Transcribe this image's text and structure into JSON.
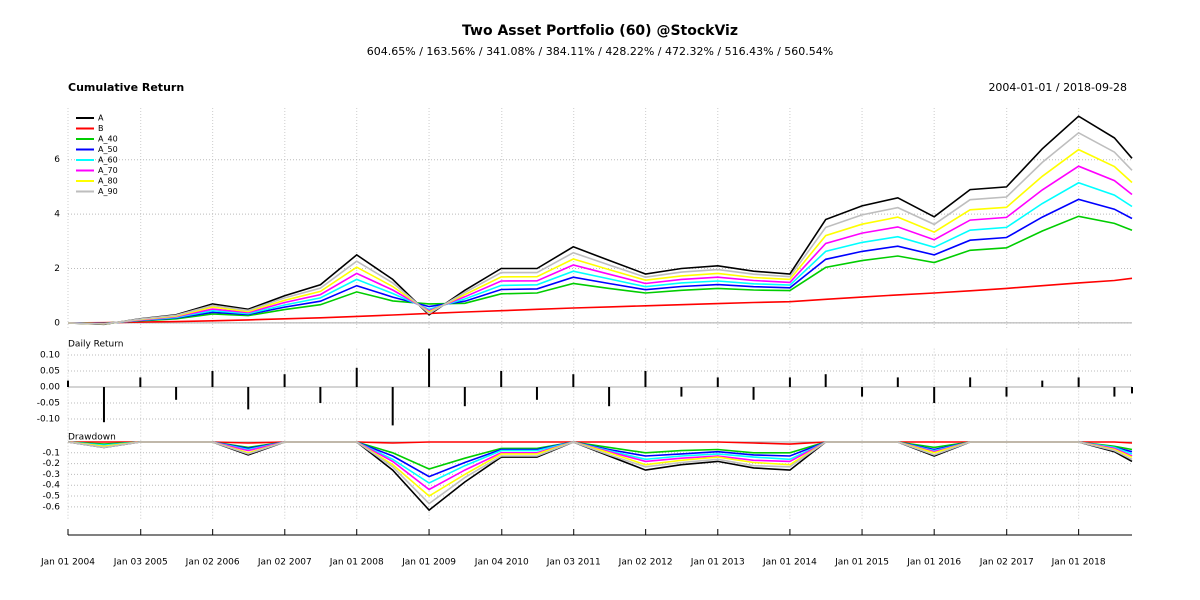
{
  "chart_data": [
    {
      "type": "line",
      "title": "Two Asset Portfolio (60) @StockViz",
      "subtitle": "604.65% / 163.56% / 341.08% / 384.11% / 428.22% / 472.32% / 516.43% / 560.54%",
      "panel_title": "Cumulative Return",
      "date_range": "2004-01-01 / 2018-09-28",
      "legend": "topleft",
      "grid": true,
      "xlim": [
        "2004-01-01",
        "2018-09-28"
      ],
      "ylim": [
        -0.26,
        7.9
      ],
      "yticks": [
        0,
        2,
        4,
        6
      ],
      "x": [
        "2004-01-01",
        "2004-07-01",
        "2005-01-01",
        "2005-07-01",
        "2006-01-01",
        "2006-07-01",
        "2007-01-01",
        "2007-07-01",
        "2008-01-01",
        "2008-07-01",
        "2009-01-01",
        "2009-07-01",
        "2010-01-01",
        "2010-07-01",
        "2011-01-01",
        "2011-07-01",
        "2012-01-01",
        "2012-07-01",
        "2013-01-01",
        "2013-07-01",
        "2014-01-01",
        "2014-07-01",
        "2015-01-01",
        "2015-07-01",
        "2016-01-01",
        "2016-07-01",
        "2017-01-01",
        "2017-07-01",
        "2018-01-01",
        "2018-07-01",
        "2018-09-28"
      ],
      "series": [
        {
          "name": "A",
          "color": "#000000",
          "values": [
            0,
            -0.05,
            0.15,
            0.3,
            0.7,
            0.5,
            1.0,
            1.4,
            2.5,
            1.6,
            0.3,
            1.2,
            2.0,
            2.0,
            2.8,
            2.3,
            1.8,
            2.0,
            2.1,
            1.9,
            1.8,
            3.8,
            4.3,
            4.6,
            3.9,
            4.9,
            5.0,
            6.4,
            7.6,
            6.8,
            6.05
          ]
        },
        {
          "name": "B",
          "color": "#ff0000",
          "values": [
            0,
            0.01,
            0.03,
            0.05,
            0.08,
            0.11,
            0.15,
            0.19,
            0.24,
            0.29,
            0.35,
            0.4,
            0.45,
            0.5,
            0.55,
            0.59,
            0.63,
            0.67,
            0.71,
            0.75,
            0.78,
            0.87,
            0.95,
            1.03,
            1.1,
            1.18,
            1.27,
            1.37,
            1.47,
            1.56,
            1.64
          ]
        },
        {
          "name": "A_40",
          "color": "#00cd00",
          "values": [
            0,
            -0.01,
            0.08,
            0.15,
            0.33,
            0.27,
            0.49,
            0.67,
            1.14,
            0.81,
            0.7,
            0.72,
            1.07,
            1.1,
            1.45,
            1.27,
            1.1,
            1.2,
            1.27,
            1.21,
            1.19,
            2.04,
            2.29,
            2.46,
            2.22,
            2.67,
            2.76,
            3.38,
            3.92,
            3.66,
            3.41
          ]
        },
        {
          "name": "A_50",
          "color": "#0000ff",
          "values": [
            0,
            -0.02,
            0.09,
            0.18,
            0.39,
            0.31,
            0.58,
            0.8,
            1.37,
            0.95,
            0.6,
            0.8,
            1.23,
            1.25,
            1.68,
            1.45,
            1.22,
            1.34,
            1.41,
            1.33,
            1.29,
            2.34,
            2.63,
            2.82,
            2.5,
            3.04,
            3.14,
            3.89,
            4.54,
            4.18,
            3.84
          ]
        },
        {
          "name": "A_60",
          "color": "#00ffff",
          "values": [
            0,
            -0.03,
            0.1,
            0.2,
            0.45,
            0.34,
            0.66,
            0.92,
            1.6,
            1.08,
            0.5,
            0.88,
            1.38,
            1.4,
            1.9,
            1.62,
            1.33,
            1.47,
            1.54,
            1.44,
            1.39,
            2.63,
            2.96,
            3.17,
            2.78,
            3.41,
            3.51,
            4.39,
            5.15,
            4.7,
            4.28
          ]
        },
        {
          "name": "A_70",
          "color": "#ff00ff",
          "values": [
            0,
            -0.03,
            0.11,
            0.23,
            0.51,
            0.38,
            0.75,
            1.04,
            1.82,
            1.21,
            0.45,
            0.96,
            1.54,
            1.55,
            2.13,
            1.79,
            1.45,
            1.6,
            1.68,
            1.56,
            1.49,
            2.92,
            3.3,
            3.53,
            3.06,
            3.78,
            3.88,
            4.89,
            5.76,
            5.23,
            4.72
          ]
        },
        {
          "name": "A_80",
          "color": "#ffff00",
          "values": [
            0,
            -0.04,
            0.13,
            0.25,
            0.58,
            0.42,
            0.83,
            1.16,
            2.05,
            1.34,
            0.4,
            1.04,
            1.69,
            1.7,
            2.35,
            1.96,
            1.57,
            1.73,
            1.82,
            1.67,
            1.6,
            3.21,
            3.63,
            3.89,
            3.34,
            4.16,
            4.25,
            5.39,
            6.37,
            5.75,
            5.16
          ]
        },
        {
          "name": "A_90",
          "color": "#bebebe",
          "values": [
            0,
            -0.04,
            0.14,
            0.28,
            0.64,
            0.46,
            0.92,
            1.28,
            2.27,
            1.47,
            0.35,
            1.12,
            1.85,
            1.85,
            2.58,
            2.13,
            1.68,
            1.87,
            1.96,
            1.79,
            1.7,
            3.51,
            3.97,
            4.24,
            3.62,
            4.53,
            4.63,
            5.9,
            6.99,
            6.28,
            5.61
          ]
        }
      ]
    },
    {
      "type": "bar",
      "panel_title": "Daily Return",
      "grid": true,
      "color": "#000000",
      "xlim": [
        "2004-01-01",
        "2018-09-28"
      ],
      "ylim": [
        -0.16,
        0.12
      ],
      "yticks": [
        {
          "value": -0.1,
          "label": "-0.10"
        },
        {
          "value": -0.05,
          "label": "-0.05"
        },
        {
          "value": 0,
          "label": "0.00"
        },
        {
          "value": 0.05,
          "label": "0.05"
        },
        {
          "value": 0.1,
          "label": "0.10"
        }
      ],
      "x": [
        "2004-01-01",
        "2004-07-01",
        "2005-01-01",
        "2005-07-01",
        "2006-01-01",
        "2006-07-01",
        "2007-01-01",
        "2007-07-01",
        "2008-01-01",
        "2008-07-01",
        "2009-01-01",
        "2009-07-01",
        "2010-01-01",
        "2010-07-01",
        "2011-01-01",
        "2011-07-01",
        "2012-01-01",
        "2012-07-01",
        "2013-01-01",
        "2013-07-01",
        "2014-01-01",
        "2014-07-01",
        "2015-01-01",
        "2015-07-01",
        "2016-01-01",
        "2016-07-01",
        "2017-01-01",
        "2017-07-01",
        "2018-01-01",
        "2018-07-01",
        "2018-09-28"
      ],
      "values": [
        0.02,
        -0.11,
        0.03,
        -0.04,
        0.05,
        -0.07,
        0.04,
        -0.05,
        0.06,
        -0.12,
        0.12,
        -0.06,
        0.05,
        -0.04,
        0.04,
        -0.06,
        0.05,
        -0.03,
        0.03,
        -0.04,
        0.03,
        0.04,
        -0.03,
        0.03,
        -0.05,
        0.03,
        -0.03,
        0.02,
        0.03,
        -0.03,
        -0.02
      ]
    },
    {
      "type": "line",
      "panel_title": "Drawdown",
      "grid": true,
      "xlim": [
        "2004-01-01",
        "2018-09-28"
      ],
      "ylim": [
        -0.72,
        0.02
      ],
      "yticks": [
        -0.6,
        -0.5,
        -0.4,
        -0.3,
        -0.2,
        -0.1
      ],
      "xticks": [
        {
          "value": "2004-01-01",
          "label": "Jan 01 2004"
        },
        {
          "value": "2005-01-03",
          "label": "Jan 03 2005"
        },
        {
          "value": "2006-01-02",
          "label": "Jan 02 2006"
        },
        {
          "value": "2007-01-02",
          "label": "Jan 02 2007"
        },
        {
          "value": "2008-01-01",
          "label": "Jan 01 2008"
        },
        {
          "value": "2009-01-01",
          "label": "Jan 01 2009"
        },
        {
          "value": "2010-01-04",
          "label": "Jan 04 2010"
        },
        {
          "value": "2011-01-03",
          "label": "Jan 03 2011"
        },
        {
          "value": "2012-01-02",
          "label": "Jan 02 2012"
        },
        {
          "value": "2013-01-01",
          "label": "Jan 01 2013"
        },
        {
          "value": "2014-01-01",
          "label": "Jan 01 2014"
        },
        {
          "value": "2015-01-01",
          "label": "Jan 01 2015"
        },
        {
          "value": "2016-01-01",
          "label": "Jan 01 2016"
        },
        {
          "value": "2017-01-02",
          "label": "Jan 02 2017"
        },
        {
          "value": "2018-01-01",
          "label": "Jan 01 2018"
        }
      ],
      "x": [
        "2004-01-01",
        "2004-07-01",
        "2005-01-01",
        "2005-07-01",
        "2006-01-01",
        "2006-07-01",
        "2007-01-01",
        "2007-07-01",
        "2008-01-01",
        "2008-07-01",
        "2009-01-01",
        "2009-07-01",
        "2010-01-01",
        "2010-07-01",
        "2011-01-01",
        "2011-07-01",
        "2012-01-01",
        "2012-07-01",
        "2013-01-01",
        "2013-07-01",
        "2014-01-01",
        "2014-07-01",
        "2015-01-01",
        "2015-07-01",
        "2016-01-01",
        "2016-07-01",
        "2017-01-01",
        "2017-07-01",
        "2018-01-01",
        "2018-07-01",
        "2018-09-28"
      ],
      "series": [
        {
          "name": "A",
          "color": "#000000",
          "values": [
            0,
            -0.05,
            0,
            0,
            0,
            -0.12,
            0,
            0,
            0,
            -0.26,
            -0.63,
            -0.37,
            -0.14,
            -0.14,
            0,
            -0.13,
            -0.26,
            -0.21,
            -0.18,
            -0.24,
            -0.26,
            0,
            0,
            0,
            -0.13,
            0,
            0,
            0,
            0,
            -0.09,
            -0.18
          ]
        },
        {
          "name": "B",
          "color": "#ff0000",
          "values": [
            0,
            0,
            0,
            0,
            0,
            -0.01,
            0,
            0,
            0,
            -0.01,
            0,
            0,
            0,
            0,
            0,
            0,
            0,
            0,
            0,
            -0.01,
            -0.02,
            0,
            0,
            0,
            0,
            0,
            0,
            0,
            0,
            0,
            -0.01
          ]
        },
        {
          "name": "A_40",
          "color": "#00cd00",
          "values": [
            0,
            -0.02,
            0,
            0,
            0,
            -0.05,
            0,
            0,
            0,
            -0.1,
            -0.25,
            -0.15,
            -0.06,
            -0.06,
            0,
            -0.05,
            -0.1,
            -0.08,
            -0.07,
            -0.1,
            -0.1,
            0,
            0,
            0,
            -0.05,
            0,
            0,
            0,
            0,
            -0.04,
            -0.07
          ]
        },
        {
          "name": "A_50",
          "color": "#0000ff",
          "values": [
            0,
            -0.03,
            0,
            0,
            0,
            -0.06,
            0,
            0,
            0,
            -0.13,
            -0.32,
            -0.19,
            -0.07,
            -0.07,
            0,
            -0.07,
            -0.13,
            -0.11,
            -0.09,
            -0.12,
            -0.13,
            0,
            0,
            0,
            -0.07,
            0,
            0,
            0,
            0,
            -0.05,
            -0.09
          ]
        },
        {
          "name": "A_60",
          "color": "#00ffff",
          "values": [
            0,
            -0.03,
            0,
            0,
            0,
            -0.07,
            0,
            0,
            0,
            -0.16,
            -0.38,
            -0.22,
            -0.08,
            -0.08,
            0,
            -0.08,
            -0.16,
            -0.13,
            -0.11,
            -0.14,
            -0.16,
            0,
            0,
            0,
            -0.08,
            0,
            0,
            0,
            0,
            -0.05,
            -0.11
          ]
        },
        {
          "name": "A_70",
          "color": "#ff00ff",
          "values": [
            0,
            -0.04,
            0,
            0,
            0,
            -0.08,
            0,
            0,
            0,
            -0.18,
            -0.44,
            -0.26,
            -0.1,
            -0.1,
            0,
            -0.09,
            -0.18,
            -0.15,
            -0.13,
            -0.17,
            -0.18,
            0,
            0,
            0,
            -0.09,
            0,
            0,
            0,
            0,
            -0.06,
            -0.13
          ]
        },
        {
          "name": "A_80",
          "color": "#ffff00",
          "values": [
            0,
            -0.04,
            0,
            0,
            0,
            -0.1,
            0,
            0,
            0,
            -0.21,
            -0.5,
            -0.3,
            -0.11,
            -0.11,
            0,
            -0.1,
            -0.21,
            -0.17,
            -0.14,
            -0.19,
            -0.21,
            0,
            0,
            0,
            -0.1,
            0,
            0,
            0,
            0,
            -0.07,
            -0.14
          ]
        },
        {
          "name": "A_90",
          "color": "#bebebe",
          "values": [
            0,
            -0.05,
            0,
            0,
            0,
            -0.11,
            0,
            0,
            0,
            -0.23,
            -0.57,
            -0.33,
            -0.13,
            -0.13,
            0,
            -0.12,
            -0.23,
            -0.19,
            -0.16,
            -0.22,
            -0.23,
            0,
            0,
            0,
            -0.12,
            0,
            0,
            0,
            0,
            -0.08,
            -0.16
          ]
        }
      ]
    }
  ]
}
